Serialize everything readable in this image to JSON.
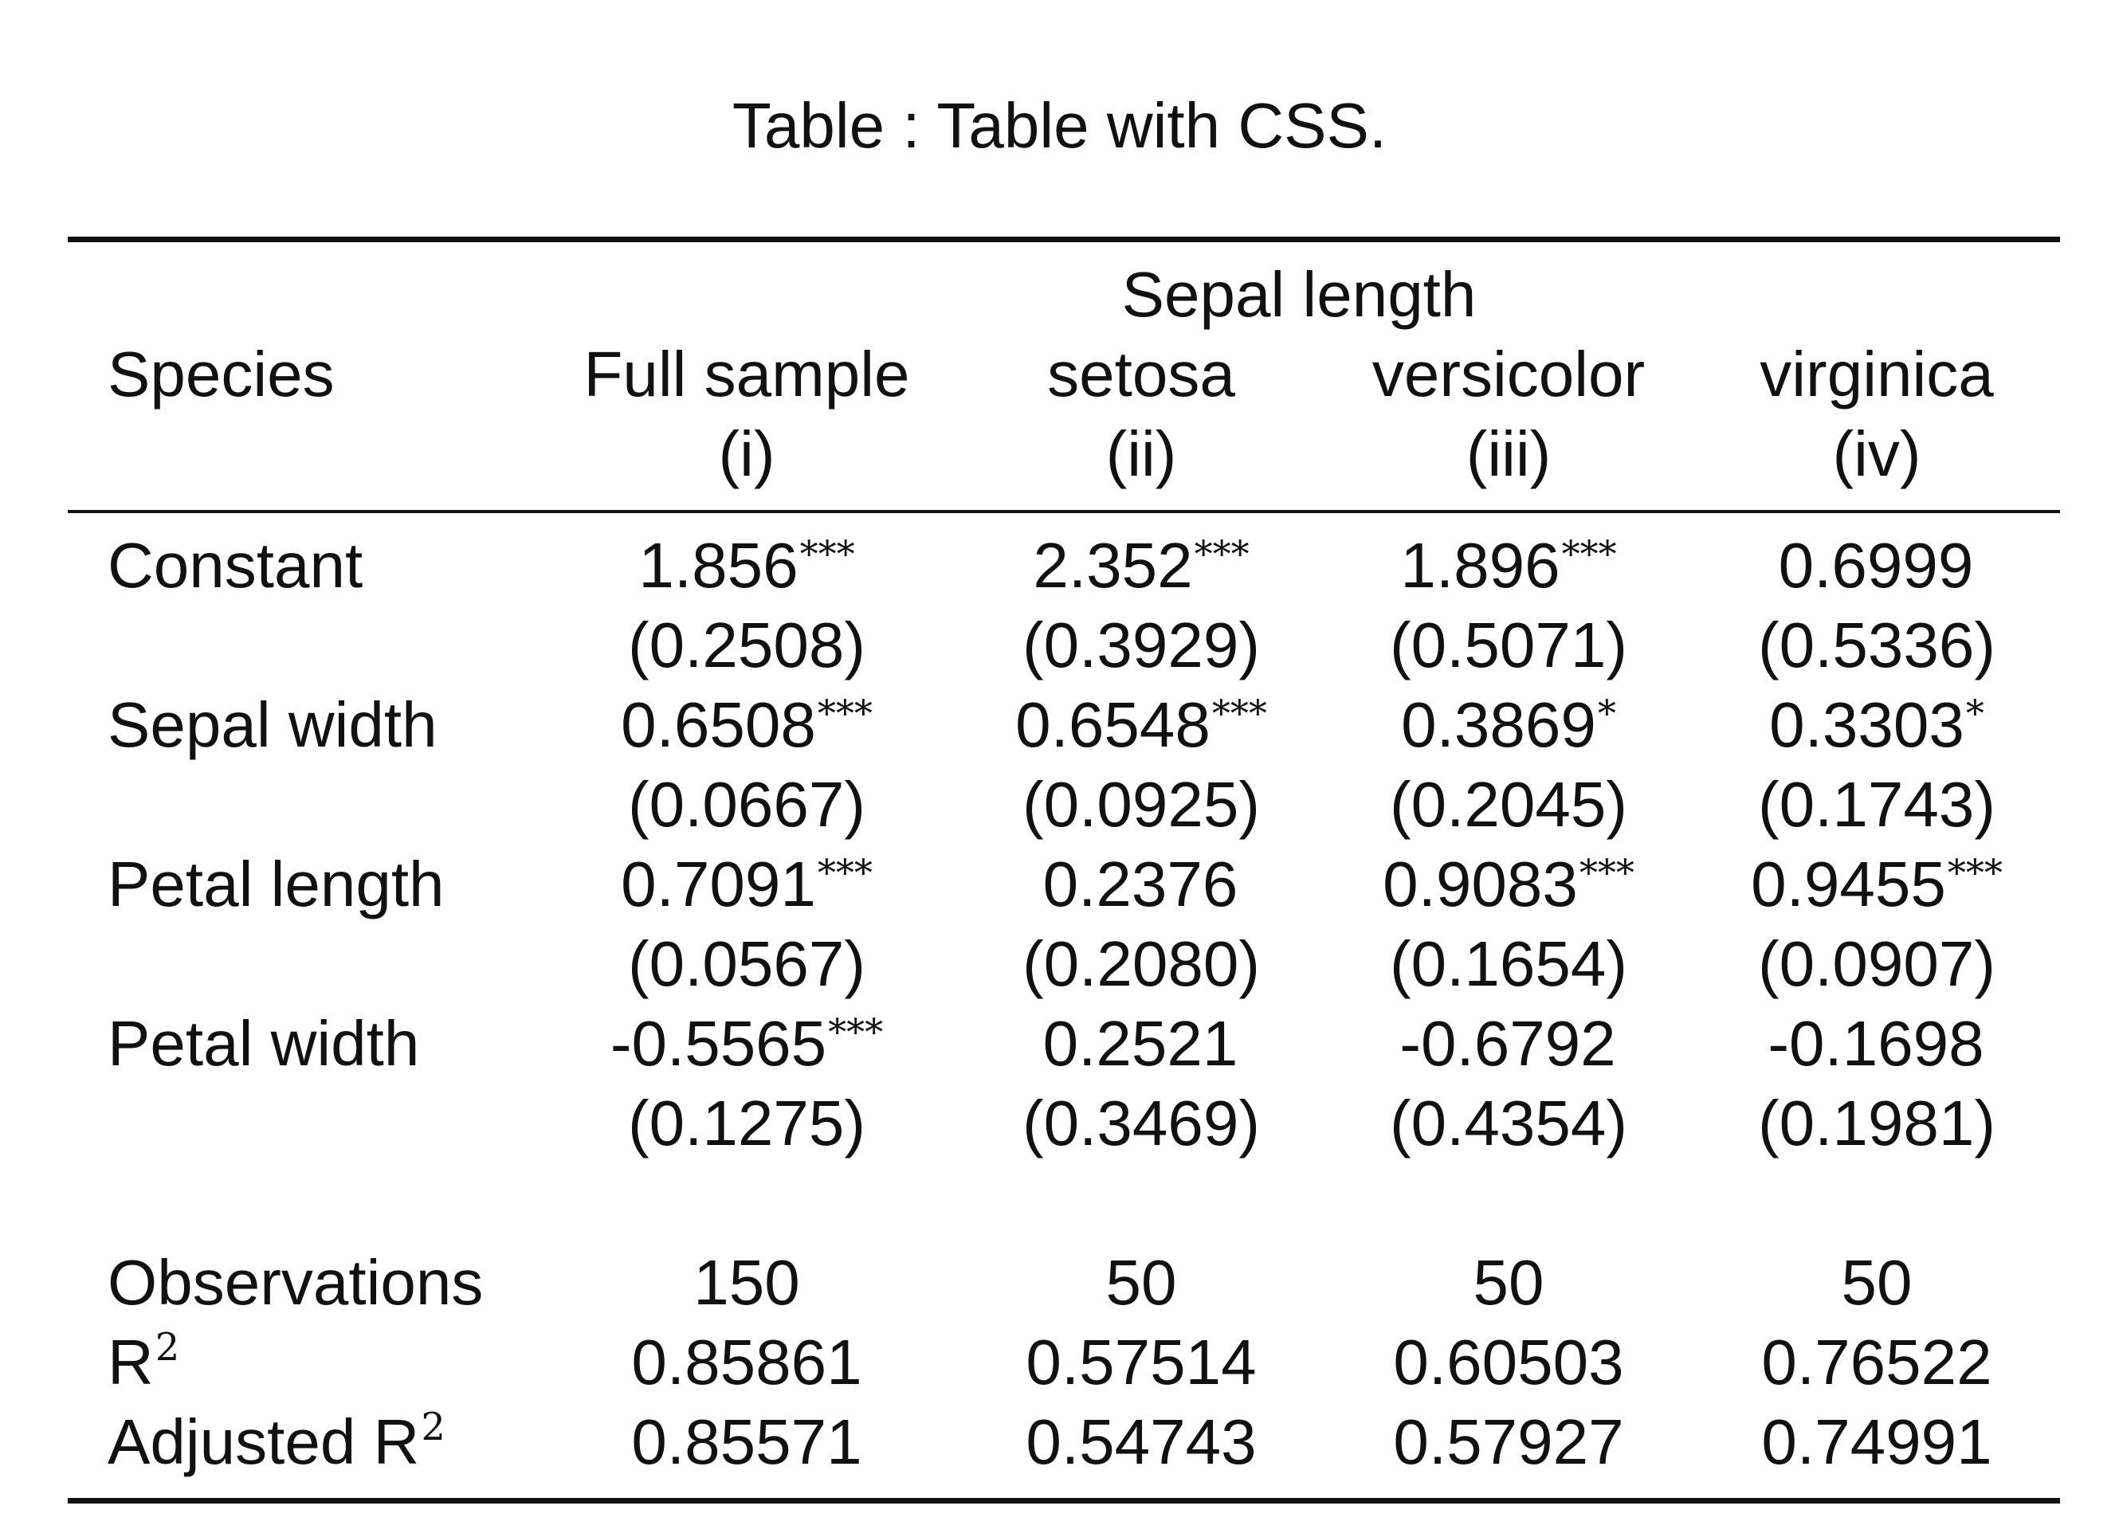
{
  "caption": "Table : Table with CSS.",
  "header": {
    "dependent_variable": "Sepal length",
    "row_label_header": "Species",
    "columns": [
      {
        "name": "Full sample",
        "number": "(i)"
      },
      {
        "name": "setosa",
        "number": "(ii)"
      },
      {
        "name": "versicolor",
        "number": "(iii)"
      },
      {
        "name": "virginica",
        "number": "(iv)"
      }
    ]
  },
  "rows": [
    {
      "label": "Constant",
      "coefs": [
        {
          "value": "1.856",
          "stars": "***"
        },
        {
          "value": "2.352",
          "stars": "***"
        },
        {
          "value": "1.896",
          "stars": "***"
        },
        {
          "value": "0.6999",
          "stars": ""
        }
      ],
      "se": [
        "(0.2508)",
        "(0.3929)",
        "(0.5071)",
        "(0.5336)"
      ]
    },
    {
      "label": "Sepal width",
      "coefs": [
        {
          "value": "0.6508",
          "stars": "***"
        },
        {
          "value": "0.6548",
          "stars": "***"
        },
        {
          "value": "0.3869",
          "stars": "*"
        },
        {
          "value": "0.3303",
          "stars": "*"
        }
      ],
      "se": [
        "(0.0667)",
        "(0.0925)",
        "(0.2045)",
        "(0.1743)"
      ]
    },
    {
      "label": "Petal length",
      "coefs": [
        {
          "value": "0.7091",
          "stars": "***"
        },
        {
          "value": "0.2376",
          "stars": ""
        },
        {
          "value": "0.9083",
          "stars": "***"
        },
        {
          "value": "0.9455",
          "stars": "***"
        }
      ],
      "se": [
        "(0.0567)",
        "(0.2080)",
        "(0.1654)",
        "(0.0907)"
      ]
    },
    {
      "label": "Petal width",
      "coefs": [
        {
          "value": "-0.5565",
          "stars": "***"
        },
        {
          "value": "0.2521",
          "stars": ""
        },
        {
          "value": "-0.6792",
          "stars": ""
        },
        {
          "value": "-0.1698",
          "stars": ""
        }
      ],
      "se": [
        "(0.1275)",
        "(0.3469)",
        "(0.4354)",
        "(0.1981)"
      ]
    }
  ],
  "stats": {
    "observations": {
      "label": "Observations",
      "values": [
        "150",
        "50",
        "50",
        "50"
      ]
    },
    "r2": {
      "label": "R",
      "sup": "2",
      "values": [
        "0.85861",
        "0.57514",
        "0.60503",
        "0.76522"
      ]
    },
    "adj_r2": {
      "label": "Adjusted R",
      "sup": "2",
      "values": [
        "0.85571",
        "0.54743",
        "0.57927",
        "0.74991"
      ]
    }
  }
}
